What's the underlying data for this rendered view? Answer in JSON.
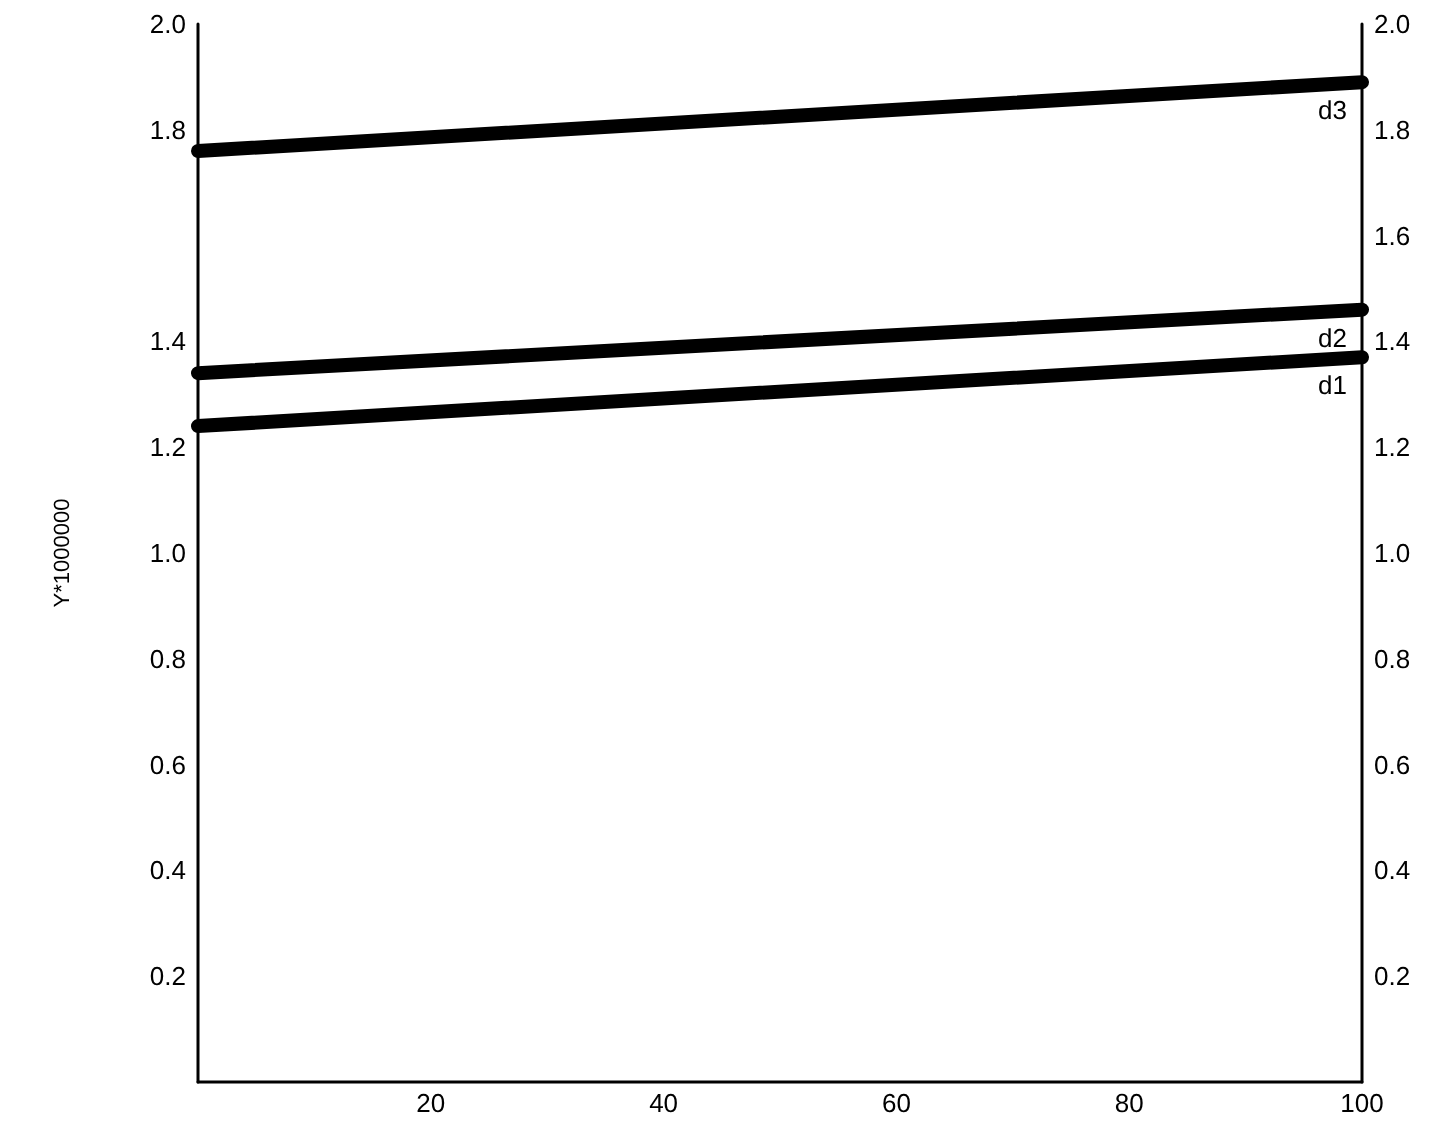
{
  "chart_data": {
    "type": "line",
    "ylabel": "Y*1000000",
    "x": [
      0,
      100
    ],
    "xlim": [
      0,
      100
    ],
    "xticks": [
      20,
      40,
      60,
      80,
      100
    ],
    "ylim": [
      0,
      2.0
    ],
    "yticks": [
      0.2,
      0.4,
      0.6,
      0.8,
      {
        "value": 1,
        "label": "1.0"
      },
      1.2,
      1.4,
      1.8,
      {
        "value": 2,
        "label": "2.0"
      }
    ],
    "y2lim": [
      0,
      2.0
    ],
    "y2ticks": [
      0.2,
      0.4,
      0.6,
      0.8,
      {
        "value": 1,
        "label": "1.0"
      },
      1.2,
      1.4,
      1.6,
      1.8,
      {
        "value": 2,
        "label": "2.0"
      }
    ],
    "grid": false,
    "legend": false,
    "marker": "none",
    "line_style": "solid",
    "series": [
      {
        "name": "d1",
        "color": "#000000",
        "values": [
          1.24,
          1.37
        ]
      },
      {
        "name": "d2",
        "color": "#000000",
        "values": [
          1.34,
          1.46
        ]
      },
      {
        "name": "d3",
        "color": "#000000",
        "values": [
          1.76,
          1.89
        ]
      }
    ]
  }
}
